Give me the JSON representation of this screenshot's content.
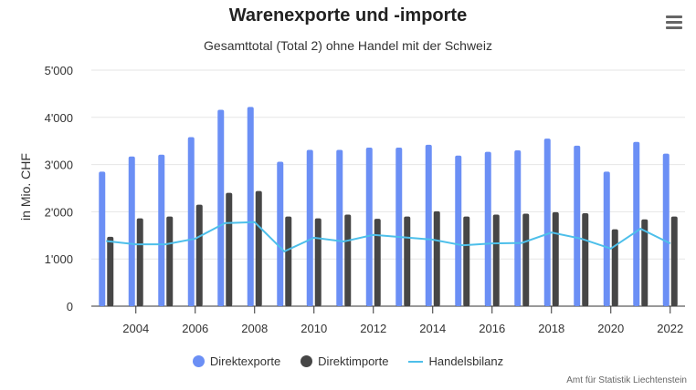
{
  "title": "Warenexporte und -importe",
  "subtitle": "Gesamttotal (Total 2) ohne Handel mit der Schweiz",
  "credits": "Amt für Statistik Liechtenstein",
  "menu_icon": "hamburger-menu-icon",
  "colors": {
    "exports": "#6b8ff5",
    "imports": "#464646",
    "balance": "#4dbfea",
    "grid": "#e6e6e6"
  },
  "legend": [
    "Direktexporte",
    "Direktimporte",
    "Handelsbilanz"
  ],
  "chart_data": {
    "type": "bar",
    "title": "Warenexporte und -importe",
    "subtitle": "Gesamttotal (Total 2) ohne Handel mit der Schweiz",
    "ylabel": "in Mio. CHF",
    "xlabel": "",
    "ylim": [
      0,
      5000
    ],
    "yticks": [
      0,
      1000,
      2000,
      3000,
      4000,
      5000
    ],
    "ytick_labels": [
      "0",
      "1'000",
      "2'000",
      "3'000",
      "4'000",
      "5'000"
    ],
    "xtick_labels": [
      "2004",
      "2006",
      "2008",
      "2010",
      "2012",
      "2014",
      "2016",
      "2018",
      "2020",
      "2022"
    ],
    "grid": true,
    "legend_position": "bottom",
    "categories": [
      "2003",
      "2004",
      "2005",
      "2006",
      "2007",
      "2008",
      "2009",
      "2010",
      "2011",
      "2012",
      "2013",
      "2014",
      "2015",
      "2016",
      "2017",
      "2018",
      "2019",
      "2020",
      "2021",
      "2022"
    ],
    "series": [
      {
        "name": "Direktexporte",
        "type": "bar",
        "values": [
          2850,
          3170,
          3210,
          3580,
          4160,
          4220,
          3060,
          3310,
          3310,
          3360,
          3360,
          3420,
          3190,
          3270,
          3300,
          3550,
          3400,
          2850,
          3480,
          3230
        ]
      },
      {
        "name": "Direktimporte",
        "type": "bar",
        "values": [
          1470,
          1860,
          1900,
          2150,
          2400,
          2440,
          1900,
          1860,
          1940,
          1850,
          1900,
          2010,
          1900,
          1940,
          1960,
          1990,
          1970,
          1630,
          1840,
          1900
        ]
      },
      {
        "name": "Handelsbilanz",
        "type": "line",
        "values": [
          1380,
          1310,
          1310,
          1430,
          1760,
          1780,
          1160,
          1450,
          1370,
          1510,
          1460,
          1410,
          1290,
          1330,
          1340,
          1560,
          1430,
          1220,
          1640,
          1330
        ]
      }
    ]
  }
}
